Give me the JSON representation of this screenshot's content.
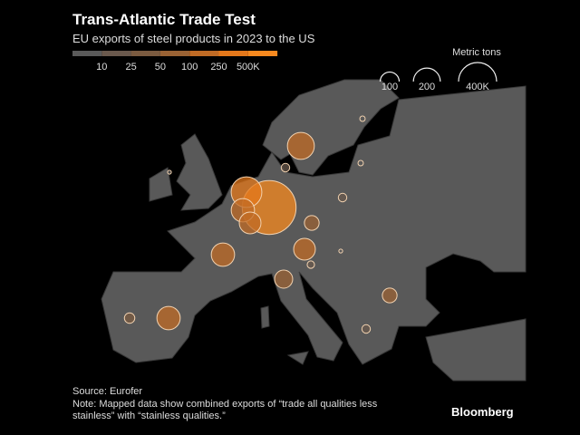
{
  "header": {
    "title": "Trans-Atlantic Trade Test",
    "subtitle": "EU exports of steel products in 2023 to the US"
  },
  "color_legend": {
    "ticks": [
      10,
      25,
      50,
      100,
      250,
      {
        "value": 500,
        "label": "500K"
      }
    ],
    "colors": [
      "#5a5a5a",
      "#6a594d",
      "#7b5b40",
      "#9a6234",
      "#c06b25",
      "#e4781b",
      "#f7891f"
    ]
  },
  "size_legend": {
    "title": "Metric tons",
    "ticks": [
      100,
      200,
      {
        "value": 400,
        "label": "400K"
      }
    ]
  },
  "bubbles": {
    "values": [
      800,
      260,
      150,
      130,
      200,
      20,
      150,
      130,
      60,
      90,
      150,
      30,
      60,
      20,
      15,
      20,
      8,
      8,
      4,
      4
    ]
  },
  "footer": {
    "source": "Source: Eurofer",
    "note": "Note: Mapped data show combined exports of “trade all qualities less stainless” with “stainless qualities.”",
    "brand": "Bloomberg"
  }
}
